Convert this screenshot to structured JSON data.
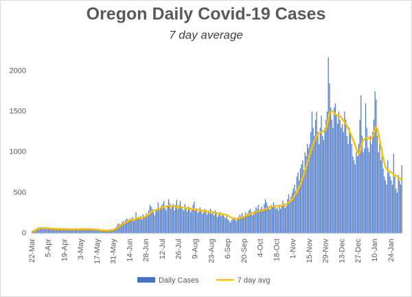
{
  "chart_data": {
    "type": "bar",
    "title": "Oregon Daily Covid-19 Cases",
    "subtitle": "7 day average",
    "categories": [
      "22-Mar",
      null,
      null,
      null,
      null,
      null,
      null,
      null,
      null,
      null,
      null,
      null,
      null,
      null,
      "5-Apr",
      null,
      null,
      null,
      null,
      null,
      null,
      null,
      null,
      null,
      null,
      null,
      null,
      null,
      "19-Apr",
      null,
      null,
      null,
      null,
      null,
      null,
      null,
      null,
      null,
      null,
      null,
      null,
      null,
      "3-May",
      null,
      null,
      null,
      null,
      null,
      null,
      null,
      null,
      null,
      null,
      null,
      null,
      null,
      "17-May",
      null,
      null,
      null,
      null,
      null,
      null,
      null,
      null,
      null,
      null,
      null,
      null,
      null,
      "31-May",
      null,
      null,
      null,
      null,
      null,
      null,
      null,
      null,
      null,
      null,
      null,
      null,
      null,
      "14-Jun",
      null,
      null,
      null,
      null,
      null,
      null,
      null,
      null,
      null,
      null,
      null,
      null,
      null,
      "28-Jun",
      null,
      null,
      null,
      null,
      null,
      null,
      null,
      null,
      null,
      null,
      null,
      null,
      null,
      "12-Jul",
      null,
      null,
      null,
      null,
      null,
      null,
      null,
      null,
      null,
      null,
      null,
      null,
      null,
      "26-Jul",
      null,
      null,
      null,
      null,
      null,
      null,
      null,
      null,
      null,
      null,
      null,
      null,
      null,
      "9-Aug",
      null,
      null,
      null,
      null,
      null,
      null,
      null,
      null,
      null,
      null,
      null,
      null,
      null,
      "23-Aug",
      null,
      null,
      null,
      null,
      null,
      null,
      null,
      null,
      null,
      null,
      null,
      null,
      null,
      "6-Sep",
      null,
      null,
      null,
      null,
      null,
      null,
      null,
      null,
      null,
      null,
      null,
      null,
      null,
      "20-Sep",
      null,
      null,
      null,
      null,
      null,
      null,
      null,
      null,
      null,
      null,
      null,
      null,
      null,
      "4-Oct",
      null,
      null,
      null,
      null,
      null,
      null,
      null,
      null,
      null,
      null,
      null,
      null,
      null,
      "18-Oct",
      null,
      null,
      null,
      null,
      null,
      null,
      null,
      null,
      null,
      null,
      null,
      null,
      null,
      "1-Nov",
      null,
      null,
      null,
      null,
      null,
      null,
      null,
      null,
      null,
      null,
      null,
      null,
      null,
      "15-Nov",
      null,
      null,
      null,
      null,
      null,
      null,
      null,
      null,
      null,
      null,
      null,
      null,
      null,
      "29-Nov",
      null,
      null,
      null,
      null,
      null,
      null,
      null,
      null,
      null,
      null,
      null,
      null,
      null,
      "13-Dec",
      null,
      null,
      null,
      null,
      null,
      null,
      null,
      null,
      null,
      null,
      null,
      null,
      null,
      "27-Dec",
      null,
      null,
      null,
      null,
      null,
      null,
      null,
      null,
      null,
      null,
      null,
      null,
      null,
      "10-Jan",
      null,
      null,
      null,
      null,
      null,
      null,
      null,
      null,
      null,
      null,
      null,
      null,
      null,
      "24-Jan",
      null,
      null,
      null,
      null,
      null,
      null,
      null,
      null,
      null
    ],
    "series": [
      {
        "name": "Daily Cases",
        "type": "bar",
        "color": "#4472c4",
        "values": [
          30,
          35,
          40,
          50,
          60,
          70,
          65,
          75,
          70,
          60,
          55,
          70,
          65,
          60,
          60,
          55,
          65,
          50,
          60,
          55,
          45,
          60,
          50,
          55,
          60,
          45,
          50,
          55,
          50,
          45,
          60,
          55,
          50,
          40,
          55,
          50,
          45,
          55,
          60,
          50,
          45,
          50,
          55,
          60,
          50,
          45,
          65,
          60,
          50,
          55,
          45,
          50,
          40,
          45,
          50,
          40,
          40,
          35,
          30,
          40,
          35,
          30,
          25,
          35,
          40,
          30,
          45,
          50,
          40,
          35,
          50,
          60,
          80,
          100,
          120,
          110,
          90,
          130,
          150,
          140,
          160,
          180,
          170,
          150,
          180,
          160,
          200,
          150,
          170,
          260,
          190,
          200,
          180,
          210,
          170,
          230,
          190,
          200,
          250,
          230,
          280,
          350,
          330,
          300,
          260,
          220,
          280,
          300,
          380,
          290,
          320,
          340,
          360,
          400,
          310,
          280,
          330,
          420,
          370,
          300,
          330,
          360,
          280,
          350,
          410,
          300,
          350,
          400,
          330,
          300,
          280,
          360,
          310,
          270,
          330,
          300,
          260,
          290,
          350,
          390,
          280,
          300,
          250,
          270,
          320,
          290,
          240,
          260,
          300,
          270,
          230,
          280,
          250,
          300,
          240,
          260,
          220,
          280,
          250,
          200,
          230,
          260,
          210,
          240,
          220,
          200,
          180,
          230,
          170,
          150,
          130,
          160,
          180,
          200,
          190,
          150,
          170,
          200,
          230,
          210,
          250,
          190,
          210,
          260,
          230,
          250,
          280,
          300,
          260,
          220,
          240,
          280,
          320,
          300,
          350,
          280,
          300,
          330,
          280,
          360,
          420,
          380,
          340,
          310,
          290,
          350,
          320,
          380,
          330,
          300,
          320,
          280,
          350,
          300,
          330,
          400,
          360,
          310,
          340,
          420,
          480,
          400,
          450,
          500,
          550,
          600,
          520,
          700,
          750,
          650,
          800,
          850,
          900,
          780,
          1000,
          950,
          1100,
          1050,
          1100,
          1250,
          1500,
          1300,
          1200,
          1400,
          1500,
          1250,
          1100,
          1300,
          1450,
          1200,
          1150,
          1300,
          1400,
          1500,
          2170,
          1850,
          1550,
          1400,
          1300,
          1550,
          1600,
          1450,
          1350,
          1500,
          1400,
          1300,
          1350,
          1250,
          1500,
          1400,
          1200,
          1100,
          1300,
          1250,
          1100,
          950,
          900,
          850,
          1000,
          950,
          1100,
          1400,
          1700,
          1200,
          1000,
          1050,
          1600,
          1300,
          1050,
          1000,
          1200,
          1100,
          1250,
          1400,
          1750,
          1650,
          1200,
          1000,
          1100,
          900,
          1050,
          800,
          700,
          650,
          600,
          900,
          750,
          700,
          650,
          600,
          980,
          700,
          550,
          500,
          720,
          650,
          600,
          840
        ]
      },
      {
        "name": "7 day avg",
        "type": "line",
        "color": "#ffc000",
        "values": [
          20,
          25,
          32,
          40,
          48,
          55,
          60,
          63,
          65,
          66,
          64,
          64,
          63,
          62,
          60,
          59,
          58,
          57,
          57,
          56,
          55,
          55,
          54,
          54,
          54,
          53,
          53,
          53,
          52,
          52,
          51,
          51,
          51,
          50,
          50,
          50,
          50,
          51,
          51,
          51,
          50,
          50,
          51,
          52,
          52,
          52,
          53,
          53,
          53,
          52,
          51,
          50,
          49,
          48,
          47,
          46,
          44,
          42,
          40,
          38,
          37,
          36,
          35,
          35,
          35,
          35,
          36,
          37,
          38,
          39,
          45,
          52,
          60,
          70,
          80,
          90,
          100,
          108,
          116,
          124,
          132,
          140,
          148,
          155,
          160,
          165,
          170,
          170,
          172,
          180,
          185,
          190,
          192,
          195,
          195,
          198,
          200,
          205,
          215,
          225,
          235,
          250,
          265,
          275,
          280,
          282,
          285,
          290,
          300,
          305,
          310,
          315,
          320,
          325,
          330,
          330,
          335,
          340,
          340,
          335,
          335,
          335,
          330,
          330,
          328,
          325,
          325,
          325,
          322,
          320,
          318,
          315,
          312,
          310,
          308,
          305,
          302,
          300,
          298,
          300,
          298,
          295,
          290,
          288,
          285,
          282,
          280,
          278,
          276,
          274,
          272,
          270,
          268,
          265,
          262,
          258,
          255,
          252,
          250,
          248,
          245,
          242,
          240,
          238,
          235,
          232,
          228,
          222,
          215,
          208,
          200,
          192,
          185,
          180,
          178,
          178,
          180,
          183,
          187,
          192,
          197,
          202,
          208,
          214,
          220,
          226,
          232,
          238,
          244,
          250,
          255,
          260,
          265,
          270,
          272,
          275,
          278,
          282,
          286,
          292,
          298,
          305,
          312,
          318,
          322,
          326,
          330,
          334,
          336,
          338,
          338,
          336,
          336,
          338,
          340,
          345,
          350,
          355,
          362,
          370,
          380,
          392,
          405,
          420,
          440,
          462,
          485,
          510,
          540,
          570,
          600,
          640,
          680,
          720,
          770,
          820,
          870,
          920,
          970,
          1010,
          1060,
          1100,
          1140,
          1170,
          1200,
          1220,
          1230,
          1240,
          1250,
          1255,
          1260,
          1270,
          1290,
          1340,
          1420,
          1480,
          1500,
          1510,
          1500,
          1490,
          1470,
          1460,
          1450,
          1445,
          1440,
          1430,
          1410,
          1390,
          1370,
          1350,
          1320,
          1290,
          1260,
          1230,
          1200,
          1160,
          1120,
          1080,
          1040,
          1000,
          980,
          1000,
          1060,
          1120,
          1150,
          1160,
          1170,
          1180,
          1180,
          1170,
          1160,
          1170,
          1190,
          1230,
          1280,
          1320,
          1280,
          1220,
          1150,
          1080,
          1000,
          930,
          870,
          820,
          790,
          780,
          770,
          760,
          750,
          740,
          730,
          720,
          710,
          700,
          690,
          680,
          670,
          650
        ]
      }
    ],
    "ylim": [
      0,
      2200
    ],
    "yticks": [
      0,
      500,
      1000,
      1500,
      2000
    ],
    "grid": false
  }
}
